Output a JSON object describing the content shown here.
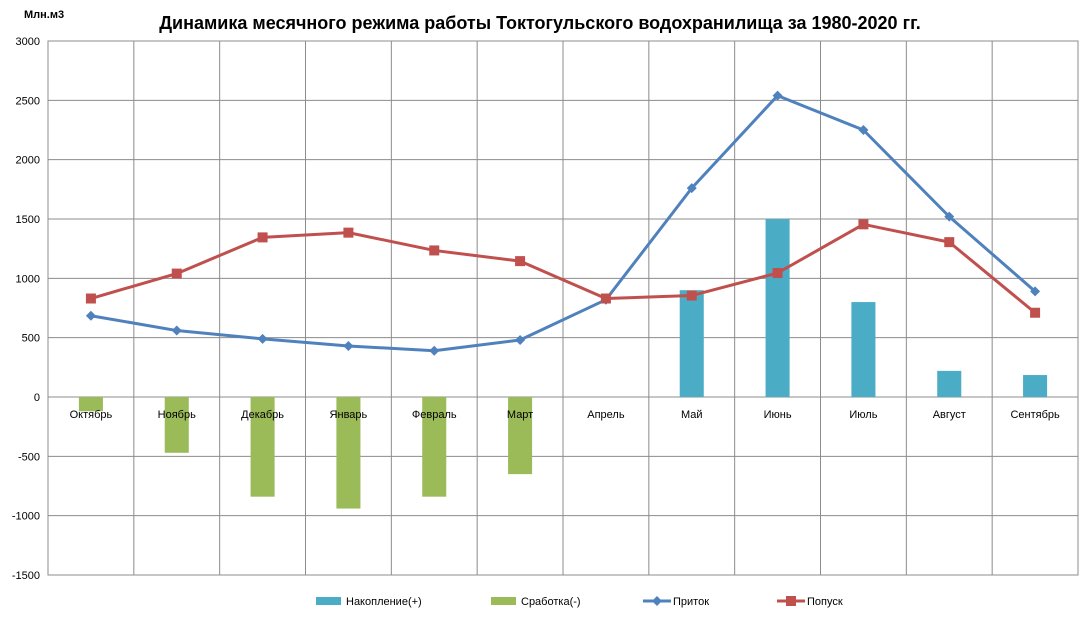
{
  "chart_data": {
    "type": "bar",
    "title": "Динамика месячного режима работы Токтогульского водохранилища за 1980-2020 гг.",
    "unit_label": "Млн.м3",
    "categories": [
      "Октябрь",
      "Ноябрь",
      "Декабрь",
      "Январь",
      "Февраль",
      "Март",
      "Апрель",
      "Май",
      "Июнь",
      "Июль",
      "Август",
      "Сентябрь"
    ],
    "ylim": [
      -1500,
      3000
    ],
    "yticks": [
      "-1500",
      "-1000",
      "-500",
      "0",
      "500",
      "1000",
      "1500",
      "2000",
      "2500",
      "3000"
    ],
    "grid": "on",
    "legend_position": "bottom",
    "series": [
      {
        "name": "Накопление(+)",
        "kind": "bar",
        "color": "#4bacc6",
        "values": [
          null,
          null,
          null,
          null,
          null,
          null,
          null,
          900,
          1500,
          800,
          220,
          185
        ]
      },
      {
        "name": "Сработка(-)",
        "kind": "bar",
        "color": "#9bbb59",
        "values": [
          -120,
          -470,
          -840,
          -940,
          -840,
          -650,
          null,
          null,
          null,
          null,
          null,
          null
        ]
      },
      {
        "name": "Приток",
        "kind": "line",
        "marker": "diamond",
        "color": "#4f81bd",
        "values": [
          685,
          560,
          490,
          430,
          390,
          480,
          820,
          1760,
          2540,
          2250,
          1520,
          890
        ]
      },
      {
        "name": "Попуск",
        "kind": "line",
        "marker": "square",
        "color": "#c0504d",
        "values": [
          830,
          1040,
          1345,
          1385,
          1235,
          1145,
          830,
          855,
          1045,
          1455,
          1305,
          710
        ]
      }
    ]
  }
}
